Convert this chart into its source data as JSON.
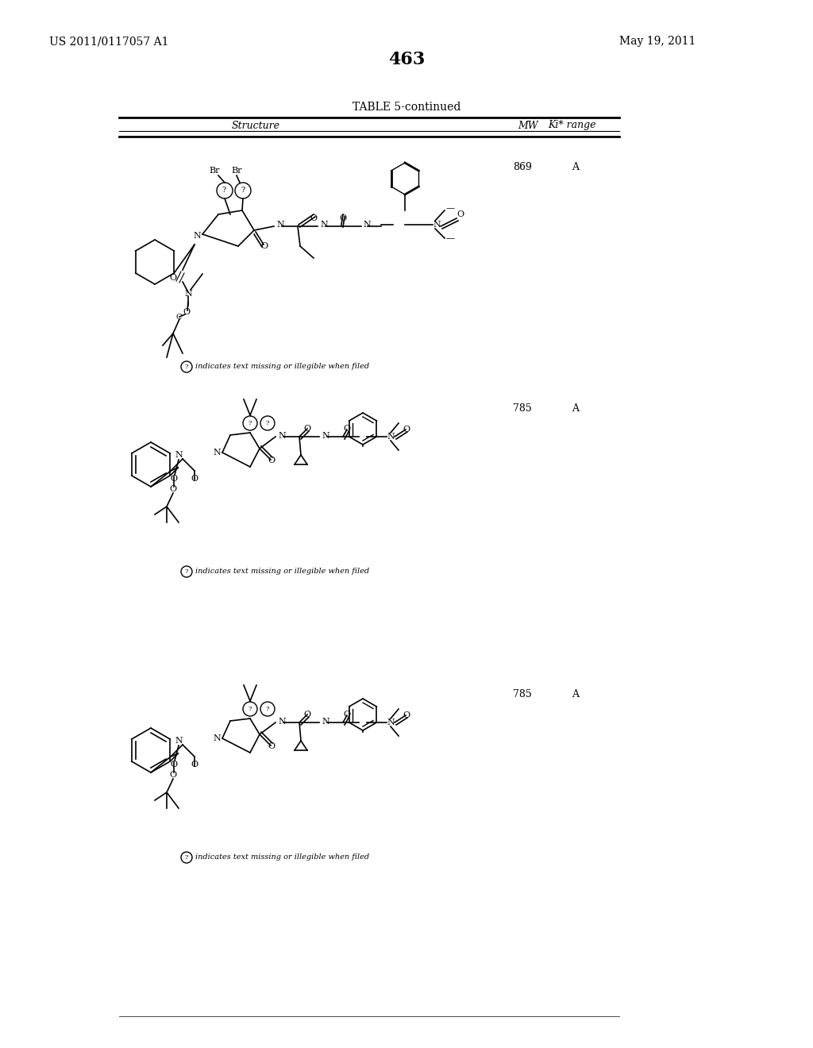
{
  "page_number": "463",
  "patent_number": "US 2011/0117057 A1",
  "patent_date": "May 19, 2011",
  "table_title": "TABLE 5-continued",
  "col_headers": [
    "Structure",
    "MW",
    "Ki* range"
  ],
  "rows": [
    {
      "mw": "869",
      "ki": "A"
    },
    {
      "mw": "785",
      "ki": "A"
    },
    {
      "mw": "785",
      "ki": "A"
    }
  ],
  "footnote": "indicates text missing or illegible when filed",
  "bg_color": "#ffffff",
  "text_color": "#000000",
  "line_color": "#000000"
}
